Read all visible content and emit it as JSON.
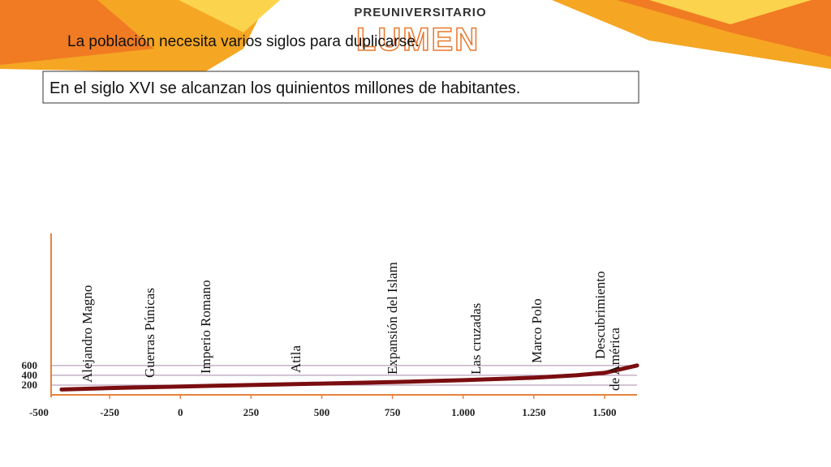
{
  "header": {
    "brand_top": "PREUNIVERSITARIO",
    "brand": "LUMEN"
  },
  "heading": "La población necesita varios siglos para duplicarse.",
  "callout": "En el siglo XVI se alcanzan los quinientos millones de habitantes.",
  "chart_data": {
    "type": "line",
    "x": [
      -420,
      -250,
      0,
      250,
      500,
      750,
      1000,
      1250,
      1400,
      1500,
      1615
    ],
    "series": [
      {
        "name": null,
        "color": "#7a0d10",
        "values": [
          110,
          140,
          170,
          200,
          230,
          260,
          300,
          350,
          400,
          450,
          600
        ]
      }
    ],
    "xlim": [
      -457,
      1615
    ],
    "xticks": [
      -500,
      -250,
      0,
      250,
      500,
      750,
      {
        "value": 1000,
        "label": "1.000"
      },
      {
        "value": 1250,
        "label": "1.250"
      },
      {
        "value": 1500,
        "label": "1.500"
      }
    ],
    "ylim": [
      0,
      3300
    ],
    "yticks": [
      200,
      400,
      600
    ],
    "grid": true,
    "annotations": [
      {
        "lines": [
          "Alejandro Magno"
        ]
      },
      {
        "lines": [
          "Guerras Púnicas"
        ]
      },
      {
        "lines": [
          "Imperio Romano"
        ]
      },
      {
        "lines": [
          "Atila"
        ]
      },
      {
        "lines": [
          "Expansión del Islam"
        ]
      },
      {
        "lines": [
          "Las cruzadas"
        ]
      },
      {
        "lines": [
          "Marco Polo"
        ]
      },
      {
        "lines": [
          "Descubrimiento",
          "de América"
        ]
      }
    ]
  }
}
